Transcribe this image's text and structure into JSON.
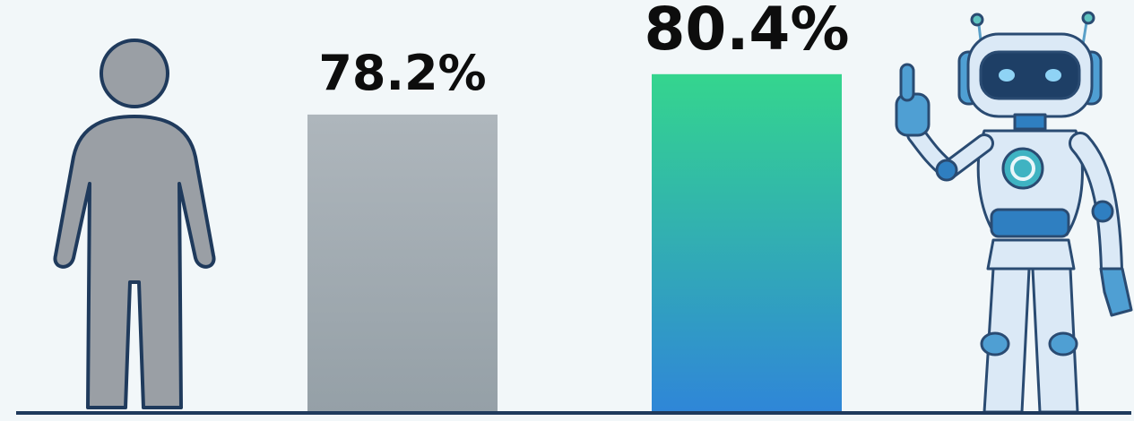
{
  "chart_data": {
    "type": "bar",
    "categories": [
      "Human",
      "AI"
    ],
    "values": [
      78.2,
      80.4
    ],
    "value_labels": [
      "78.2%",
      "80.4%"
    ],
    "bar_colors": [
      {
        "top": "#aeb6bc",
        "bottom": "#95a0a7"
      },
      {
        "top": "#34d58e",
        "bottom": "#2f86d8"
      }
    ],
    "ylim": [
      62,
      86
    ],
    "grid": false,
    "legend": "none"
  },
  "illustrations": {
    "left": "human-figure-icon",
    "right": "robot-figure-icon"
  },
  "colors": {
    "background": "#f2f7f9",
    "baseline": "#1f3a5c",
    "label_text": "#0d0d0d",
    "human_fill": "#9a9fa5",
    "human_stroke": "#1f3a5c",
    "robot_body": "#dbe9f6",
    "robot_accent": "#2f7fc1",
    "robot_dark": "#2a4b72"
  }
}
